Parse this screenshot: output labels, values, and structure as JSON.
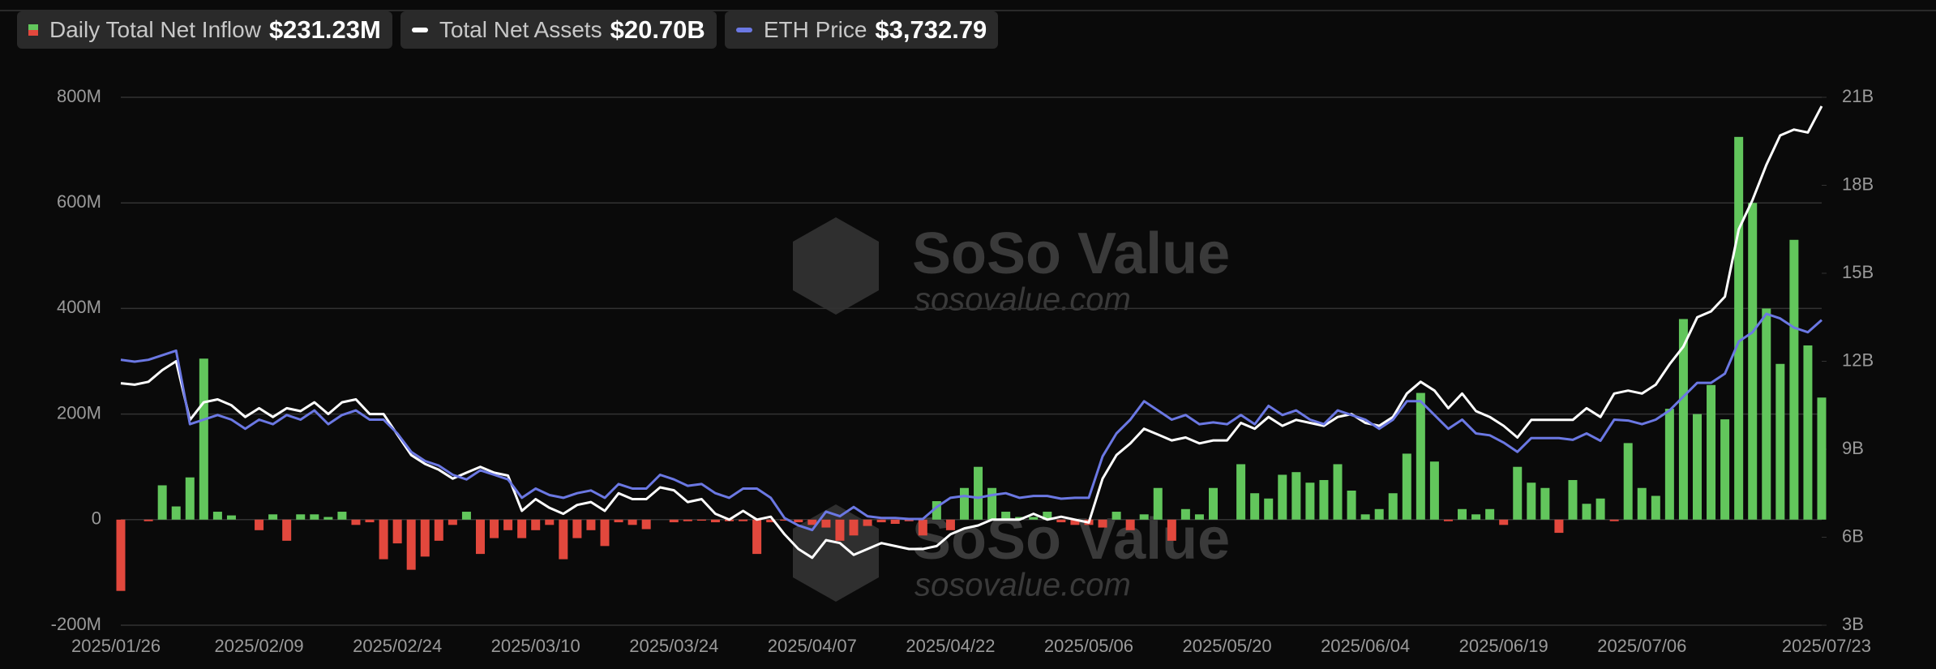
{
  "chart_data": {
    "type": "bar-line",
    "categories": [
      "2025/01/26",
      null,
      null,
      null,
      null,
      null,
      null,
      null,
      null,
      null,
      "2025/02/09",
      null,
      null,
      null,
      null,
      null,
      null,
      null,
      null,
      null,
      "2025/02/24",
      null,
      null,
      null,
      null,
      null,
      null,
      null,
      null,
      null,
      "2025/03/10",
      null,
      null,
      null,
      null,
      null,
      null,
      null,
      null,
      null,
      "2025/03/24",
      null,
      null,
      null,
      null,
      null,
      null,
      null,
      null,
      null,
      "2025/04/07",
      null,
      null,
      null,
      null,
      null,
      null,
      null,
      null,
      null,
      "2025/04/22",
      null,
      null,
      null,
      null,
      null,
      null,
      null,
      null,
      null,
      "2025/05/06",
      null,
      null,
      null,
      null,
      null,
      null,
      null,
      null,
      null,
      "2025/05/20",
      null,
      null,
      null,
      null,
      null,
      null,
      null,
      null,
      null,
      "2025/06/04",
      null,
      null,
      null,
      null,
      null,
      null,
      null,
      null,
      null,
      "2025/06/19",
      null,
      null,
      null,
      null,
      null,
      null,
      null,
      null,
      null,
      "2025/07/06",
      null,
      null,
      null,
      null,
      null,
      null,
      null,
      null,
      null,
      null,
      null,
      null,
      "2025/07/23"
    ],
    "series": [
      {
        "name": "Daily Total Net Inflow",
        "legend_label": "$231.23M",
        "type": "bar",
        "color": "#62c65c",
        "negative_color": "#e2483d",
        "values": [
          -135,
          0,
          -3,
          65,
          25,
          80,
          305,
          15,
          8,
          0,
          -20,
          10,
          -40,
          10,
          10,
          5,
          15,
          -10,
          -5,
          -75,
          -45,
          -95,
          -70,
          -40,
          -10,
          15,
          -65,
          -35,
          -20,
          -35,
          -20,
          -10,
          -75,
          -35,
          -20,
          -50,
          -5,
          -10,
          -18,
          0,
          -5,
          -3,
          -2,
          -5,
          -3,
          -3,
          -65,
          -5,
          -2,
          -5,
          -10,
          -15,
          -40,
          -30,
          -12,
          -5,
          -8,
          -3,
          -30,
          35,
          -20,
          60,
          100,
          60,
          15,
          5,
          5,
          15,
          -5,
          -10,
          -10,
          -15,
          15,
          -20,
          10,
          60,
          -40,
          20,
          10,
          60,
          0,
          105,
          50,
          40,
          85,
          90,
          70,
          75,
          105,
          55,
          10,
          20,
          50,
          125,
          240,
          110,
          -3,
          20,
          10,
          20,
          -10,
          100,
          70,
          60,
          -25,
          75,
          30,
          40,
          -3,
          145,
          60,
          45,
          210,
          380,
          200,
          255,
          190,
          725,
          600,
          400,
          295,
          530,
          330,
          231.23
        ]
      },
      {
        "name": "Total Net Assets",
        "legend_label": "$20.70B",
        "type": "line",
        "axis": "y2",
        "color": "#ffffff",
        "values": [
          11.25,
          11.2,
          11.3,
          11.7,
          12.0,
          10.0,
          10.6,
          10.7,
          10.5,
          10.1,
          10.4,
          10.1,
          10.4,
          10.3,
          10.6,
          10.2,
          10.6,
          10.7,
          10.2,
          10.2,
          9.5,
          8.8,
          8.5,
          8.3,
          8.0,
          8.2,
          8.4,
          8.2,
          8.1,
          6.9,
          7.3,
          7.0,
          6.8,
          7.1,
          7.2,
          6.9,
          7.5,
          7.3,
          7.3,
          7.7,
          7.6,
          7.2,
          7.3,
          6.8,
          6.6,
          6.9,
          6.6,
          6.7,
          6.1,
          5.6,
          5.3,
          5.9,
          5.8,
          5.4,
          5.6,
          5.8,
          5.7,
          5.6,
          5.6,
          5.7,
          6.1,
          6.3,
          6.4,
          6.6,
          6.6,
          6.6,
          6.8,
          6.6,
          6.7,
          6.6,
          6.5,
          8.0,
          8.8,
          9.2,
          9.7,
          9.5,
          9.3,
          9.4,
          9.2,
          9.3,
          9.3,
          9.9,
          9.7,
          10.1,
          9.8,
          10.0,
          9.9,
          9.8,
          10.1,
          10.2,
          9.9,
          9.8,
          10.1,
          10.9,
          11.3,
          11.0,
          10.4,
          10.9,
          10.3,
          10.1,
          9.8,
          9.4,
          10.0,
          10.0,
          10.0,
          10.0,
          10.4,
          10.1,
          10.9,
          11.0,
          10.9,
          11.2,
          11.9,
          12.5,
          13.5,
          13.7,
          14.2,
          16.5,
          17.5,
          18.7,
          19.7,
          19.9,
          19.8,
          20.7
        ]
      },
      {
        "name": "ETH Price",
        "legend_label": "$3,732.79",
        "type": "line",
        "axis": "y3",
        "color": "#6b78e3",
        "values": [
          3300,
          3280,
          3300,
          3350,
          3400,
          2600,
          2650,
          2700,
          2650,
          2550,
          2650,
          2600,
          2700,
          2650,
          2750,
          2600,
          2700,
          2750,
          2650,
          2650,
          2500,
          2300,
          2200,
          2150,
          2050,
          2000,
          2100,
          2050,
          2000,
          1800,
          1900,
          1830,
          1800,
          1850,
          1880,
          1800,
          1950,
          1900,
          1900,
          2050,
          2000,
          1930,
          1950,
          1850,
          1800,
          1900,
          1900,
          1800,
          1580,
          1500,
          1450,
          1650,
          1600,
          1700,
          1600,
          1580,
          1580,
          1570,
          1570,
          1700,
          1800,
          1820,
          1800,
          1830,
          1850,
          1800,
          1820,
          1820,
          1790,
          1800,
          1800,
          2250,
          2500,
          2650,
          2850,
          2750,
          2650,
          2700,
          2600,
          2620,
          2600,
          2700,
          2600,
          2800,
          2700,
          2750,
          2650,
          2600,
          2750,
          2700,
          2650,
          2550,
          2650,
          2850,
          2850,
          2700,
          2550,
          2650,
          2500,
          2480,
          2400,
          2300,
          2450,
          2450,
          2450,
          2430,
          2500,
          2420,
          2650,
          2640,
          2600,
          2650,
          2750,
          2900,
          3050,
          3050,
          3150,
          3500,
          3600,
          3800,
          3750,
          3650,
          3600,
          3732.79
        ]
      }
    ],
    "ylim": [
      -200,
      800
    ],
    "yticks": [
      {
        "value": -200,
        "label": "-200M"
      },
      0,
      {
        "value": 200,
        "label": "200M"
      },
      {
        "value": 400,
        "label": "400M"
      },
      {
        "value": 600,
        "label": "600M"
      },
      {
        "value": 800,
        "label": "800M"
      }
    ],
    "y2lim": [
      3,
      21
    ],
    "y2ticks": [
      {
        "value": 3,
        "label": "3B"
      },
      {
        "value": 6,
        "label": "6B"
      },
      {
        "value": 9,
        "label": "9B"
      },
      {
        "value": 12,
        "label": "12B"
      },
      {
        "value": 15,
        "label": "15B"
      },
      {
        "value": 18,
        "label": "18B"
      },
      {
        "value": 21,
        "label": "21B"
      }
    ],
    "y3lim": [
      415,
      6154
    ],
    "grid": true,
    "watermark": {
      "name": "SoSo Value",
      "url": "sosovalue.com"
    }
  }
}
